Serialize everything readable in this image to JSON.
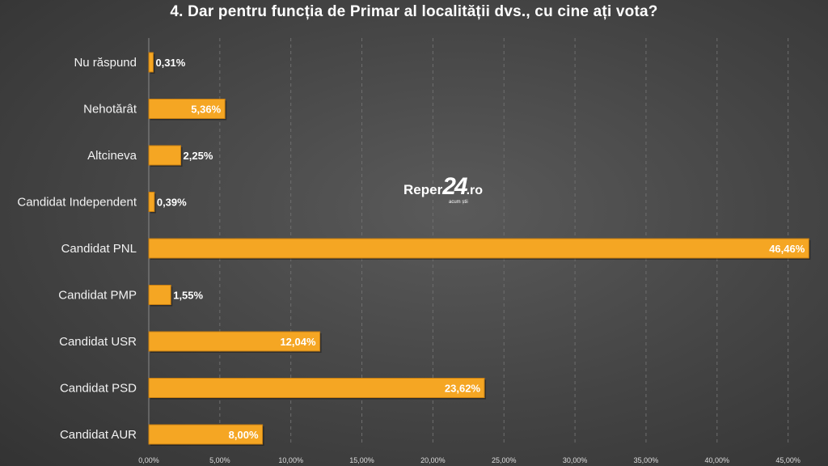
{
  "title": "4. Dar pentru funcția de Primar al localității dvs., cu cine ați vota?",
  "watermark": {
    "brand": "Reper",
    "number": "24",
    "tld": ".ro",
    "tagline": "acum știi"
  },
  "colors": {
    "bar": "#f5a623",
    "bar_edge": "#c77f12",
    "grid": "#6e6e6e"
  },
  "chart_data": {
    "type": "bar",
    "orientation": "horizontal",
    "categories": [
      "Nu răspund",
      "Nehotărât",
      "Altcineva",
      "Candidat Independent",
      "Candidat PNL",
      "Candidat PMP",
      "Candidat USR",
      "Candidat PSD",
      "Candidat AUR"
    ],
    "values": [
      0.31,
      5.36,
      2.25,
      0.39,
      46.46,
      1.55,
      12.04,
      23.62,
      8.0
    ],
    "value_labels": [
      "0,31%",
      "5,36%",
      "2,25%",
      "0,39%",
      "46,46%",
      "1,55%",
      "12,04%",
      "23,62%",
      "8,00%"
    ],
    "xlim": [
      0,
      46.5
    ],
    "x_ticks": [
      0,
      5,
      10,
      15,
      20,
      25,
      30,
      35,
      40,
      45
    ],
    "x_tick_labels": [
      "0,00%",
      "5,00%",
      "10,00%",
      "15,00%",
      "20,00%",
      "25,00%",
      "30,00%",
      "35,00%",
      "40,00%",
      "45,00%"
    ],
    "grid": "vertical-dashed",
    "legend": "none"
  }
}
